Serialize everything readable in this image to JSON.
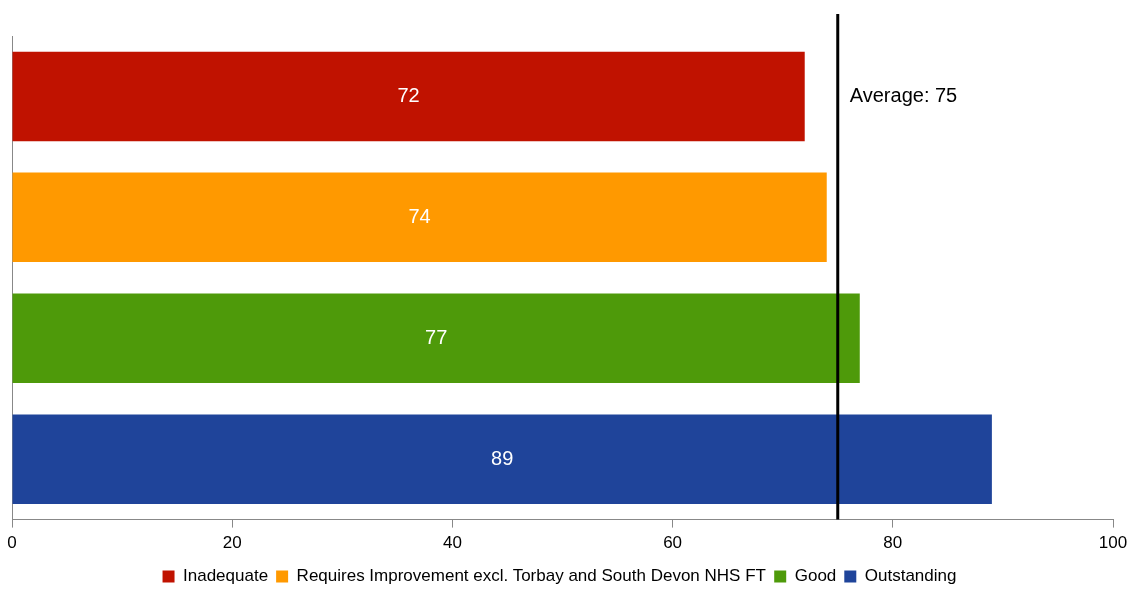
{
  "chart_data": {
    "type": "bar",
    "orientation": "horizontal",
    "stacked": true,
    "categories": [
      null,
      null,
      null,
      null
    ],
    "series": [
      {
        "name": "Inadequate",
        "color": "#c01200",
        "values": [
          72,
          null,
          null,
          null
        ]
      },
      {
        "name": "Requires Improvement excl. Torbay and South Devon NHS FT",
        "color": "#ff9900",
        "values": [
          null,
          74,
          null,
          null
        ]
      },
      {
        "name": "Good",
        "color": "#4e9a0a",
        "values": [
          null,
          null,
          77,
          null
        ]
      },
      {
        "name": "Outstanding",
        "color": "#1f449a",
        "values": [
          null,
          null,
          null,
          89
        ]
      }
    ],
    "xlim": [
      0,
      100
    ],
    "xticks": [
      0,
      20,
      40,
      60,
      80,
      100
    ],
    "ref_lines": [
      {
        "axis": "x",
        "value": 75,
        "label": "Average: 75",
        "color": "#000000"
      }
    ],
    "data_labels": true,
    "grid": false,
    "legend": "bottom"
  }
}
